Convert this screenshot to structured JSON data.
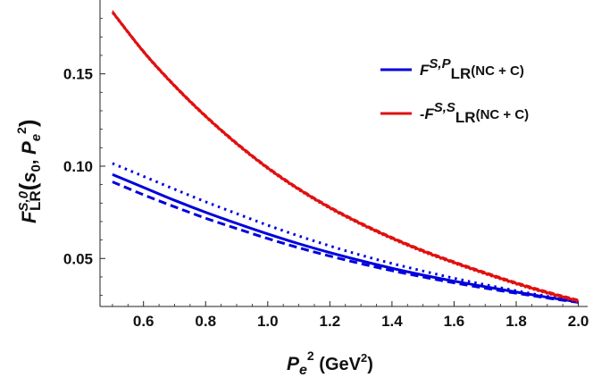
{
  "chart_data": {
    "type": "line",
    "title": "",
    "xlabel": {
      "base": "P",
      "sub": "e",
      "sup": "2",
      "units": "(GeV",
      "units_sup": "2",
      "units_close": ")"
    },
    "ylabel": {
      "F": "F",
      "sup": "S,0",
      "sub": "LR",
      "open": "(",
      "s": "s",
      "s_sub": "0",
      "comma": ",",
      "P": "P",
      "P_sub": "e",
      "P_sup": "2",
      "close": ")"
    },
    "xlim": [
      0.46,
      2.03
    ],
    "ylim": [
      0.024,
      0.19
    ],
    "x_ticks": [
      "0.6",
      "0.8",
      "1.0",
      "1.2",
      "1.4",
      "1.6",
      "1.8",
      "2.0"
    ],
    "y_ticks": [
      "0.05",
      "0.10",
      "0.15"
    ],
    "x": [
      0.5,
      0.6,
      0.7,
      0.8,
      0.9,
      1.0,
      1.1,
      1.2,
      1.3,
      1.4,
      1.5,
      1.6,
      1.7,
      1.8,
      1.9,
      2.0
    ],
    "series": [
      {
        "legend": "F^{S,P}_{LR}(NC + C)",
        "color": "#0000dd",
        "style": "solid",
        "values": [
          0.0955,
          0.0885,
          0.0815,
          0.075,
          0.069,
          0.0633,
          0.058,
          0.0532,
          0.0488,
          0.0447,
          0.041,
          0.0377,
          0.0347,
          0.0318,
          0.029,
          0.0265
        ]
      },
      {
        "color": "#0000dd",
        "style": "dashed",
        "values": [
          0.0915,
          0.0845,
          0.078,
          0.0718,
          0.0662,
          0.0608,
          0.0558,
          0.0513,
          0.0472,
          0.0434,
          0.04,
          0.0368,
          0.0339,
          0.0312,
          0.0286,
          0.0262
        ]
      },
      {
        "color": "#0000dd",
        "style": "dotted",
        "values": [
          0.1015,
          0.0945,
          0.0875,
          0.0807,
          0.0743,
          0.068,
          0.0622,
          0.0568,
          0.0518,
          0.0473,
          0.0432,
          0.0393,
          0.0358,
          0.0325,
          0.0295,
          0.0268
        ]
      },
      {
        "legend": "-F^{S,S}_{LR}(NC + C)",
        "color": "#e01010",
        "style": "solid",
        "values": [
          0.1835,
          0.162,
          0.1435,
          0.127,
          0.1122,
          0.099,
          0.0875,
          0.0775,
          0.0688,
          0.061,
          0.054,
          0.0478,
          0.042,
          0.0365,
          0.0315,
          0.027
        ]
      }
    ],
    "legend": {
      "placement": "top-right",
      "entries": [
        {
          "minus": "",
          "F": "F",
          "sup": "S,P",
          "sub": "LR",
          "tail": "(NC + C)",
          "color": "#0000dd"
        },
        {
          "minus": "-",
          "F": "F",
          "sup": "S,S",
          "sub": "LR",
          "tail": "(NC + C)",
          "color": "#e01010"
        }
      ]
    }
  }
}
